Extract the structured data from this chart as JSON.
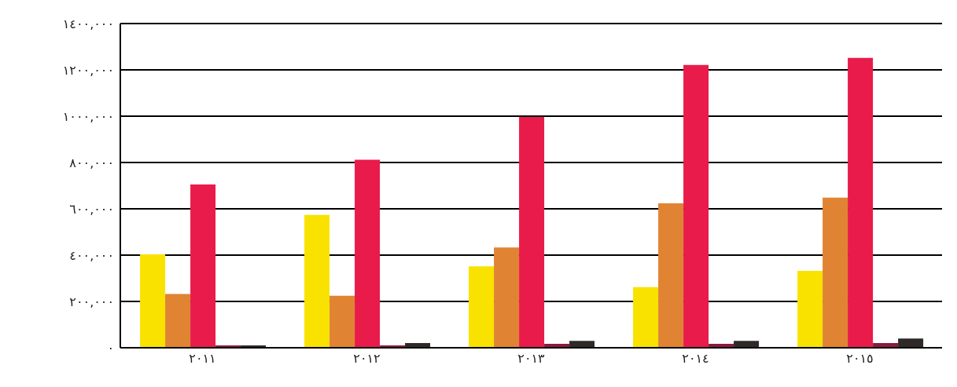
{
  "chart_data": {
    "type": "bar",
    "categories": [
      "٢٠١١",
      "٢٠١٢",
      "٢٠١٣",
      "٢٠١٤",
      "٢٠١٥"
    ],
    "series": [
      {
        "color": "#f9e200",
        "values": [
          403000,
          574000,
          352000,
          262000,
          332000
        ]
      },
      {
        "color": "#e08433",
        "values": [
          232000,
          225000,
          433000,
          624000,
          648000
        ]
      },
      {
        "color": "#e81b4a",
        "values": [
          705000,
          812000,
          997000,
          1221000,
          1252000
        ]
      },
      {
        "color": "#8b1a3e",
        "values": [
          10000,
          10000,
          17000,
          17000,
          20000
        ]
      },
      {
        "color": "#2f2a28",
        "values": [
          10000,
          20000,
          30000,
          30000,
          40000
        ]
      }
    ],
    "ylim": [
      0,
      1400000
    ],
    "yticks": [
      {
        "value": 0,
        "label": "٠"
      },
      {
        "value": 200000,
        "label": "٢٠٠,٠٠٠"
      },
      {
        "value": 400000,
        "label": "٤٠٠,٠٠٠"
      },
      {
        "value": 600000,
        "label": "٦٠٠,٠٠٠"
      },
      {
        "value": 800000,
        "label": "٨٠٠,٠٠٠"
      },
      {
        "value": 1000000,
        "label": "١٠٠٠,٠٠٠"
      },
      {
        "value": 1200000,
        "label": "١٢٠٠,٠٠٠"
      },
      {
        "value": 1400000,
        "label": "١٤٠٠,٠٠٠"
      }
    ],
    "grid": "y",
    "legend": false
  }
}
